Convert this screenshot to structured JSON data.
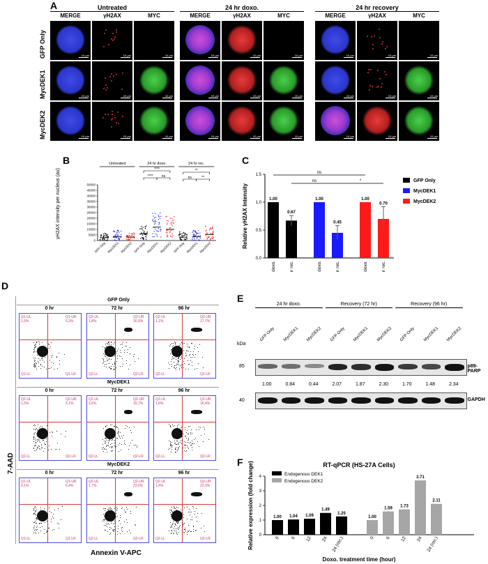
{
  "panel_letters": {
    "a": "A",
    "b": "B",
    "c": "C",
    "d": "D",
    "e": "E",
    "f": "F"
  },
  "panelA": {
    "groups": [
      "Untreated",
      "24 hr doxo.",
      "24 hr recovery"
    ],
    "channels": [
      "MERGE",
      "γH2AX",
      "MYC"
    ],
    "rows": [
      "GFP Only",
      "MycDEK1",
      "MycDEK2"
    ],
    "scale": "10 µm"
  },
  "panelB": {
    "ylabel": "γH2AX intensity per nucleus (au)",
    "groups": [
      "Untreated",
      "24 hr doxo.",
      "24 hr rec."
    ],
    "xticks": [
      "GFP Only",
      "MycDEK1",
      "MycDEK2",
      "GFP Only",
      "MycDEK1",
      "MycDEK2",
      "GFP Only",
      "MycDEK1",
      "MycDEK2"
    ],
    "yticks": [
      "0",
      "5000",
      "10000",
      "15000",
      "20000",
      "25000",
      "30000",
      "35000",
      "40000",
      "45000",
      "50000"
    ],
    "sig": [
      "****",
      "****",
      "ns",
      "**",
      "ns",
      "**"
    ]
  },
  "chart_data": [
    {
      "type": "bar",
      "panel": "C",
      "ylabel": "Relative γH2AX Intensity",
      "ylim": [
        0,
        1.5
      ],
      "yticks": [
        "0.0",
        "0.5",
        "1.0",
        "1.5"
      ],
      "categories": [
        "24 hr doxo.",
        "24 hr rec.",
        "24 hr doxo.",
        "24 hr rec.",
        "24 hr doxo.",
        "24 hr rec."
      ],
      "values": [
        1.0,
        0.67,
        1.0,
        0.45,
        1.0,
        0.7
      ],
      "labels": [
        "1.00",
        "0.67",
        "1.00",
        "0.45",
        "1.00",
        "0.70"
      ],
      "colors": [
        "#000000",
        "#000000",
        "#1a1aff",
        "#1a1aff",
        "#ff1a1a",
        "#ff1a1a"
      ],
      "errors": [
        0,
        0.09,
        0,
        0.13,
        0,
        0.22
      ],
      "legend": [
        {
          "name": "GFP Only",
          "color": "#000000"
        },
        {
          "name": "MycDEK1",
          "color": "#1a1aff"
        },
        {
          "name": "MycDEK2",
          "color": "#ff1a1a"
        }
      ],
      "sig": [
        "ns",
        "ns",
        "*"
      ]
    },
    {
      "type": "bar",
      "panel": "F",
      "title": "RT-qPCR (HS-27A Cells)",
      "xlabel": "Doxo. treatment time (hour)",
      "ylabel": "Relative expression (fold change)",
      "ylim": [
        0,
        4
      ],
      "yticks": [
        "0",
        "1",
        "2",
        "3",
        "4"
      ],
      "categories": [
        "0",
        "6",
        "12",
        "24",
        "24 (rec.)",
        "0",
        "6",
        "12",
        "24",
        "24 (rec.)"
      ],
      "values": [
        1.0,
        1.04,
        1.09,
        1.49,
        1.25,
        1.0,
        1.59,
        1.73,
        3.71,
        2.11
      ],
      "labels": [
        "1.00",
        "1.04",
        "1.09",
        "1.49",
        "1.25",
        "1.00",
        "1.59",
        "1.73",
        "3.71",
        "2.11"
      ],
      "colors": [
        "#000000",
        "#000000",
        "#000000",
        "#000000",
        "#000000",
        "#a6a6a6",
        "#a6a6a6",
        "#a6a6a6",
        "#a6a6a6",
        "#a6a6a6"
      ],
      "legend": [
        {
          "name": "Endogenous DEK1",
          "color": "#000000"
        },
        {
          "name": "Endogenous DEK2",
          "color": "#a6a6a6"
        }
      ]
    }
  ],
  "panelD": {
    "ylabel": "7-AAD",
    "xlabel": "Annexin V-APC",
    "conditions": [
      "GFP Only",
      "MycDEK1",
      "MycDEK2"
    ],
    "times": [
      "0 hr",
      "72 hr",
      "96 hr"
    ],
    "quadrants": [
      [
        [
          "Q1-UL",
          "Q1-UR",
          "Q1-LL",
          "Q1-LR"
        ],
        [
          "Q2-UL",
          "Q2-UR",
          "Q2-LL",
          "Q2-LR"
        ],
        [
          "Q2-UL",
          "Q2-UR",
          "Q2-LL",
          "Q2-LR"
        ]
      ],
      [
        [
          "Q2-UL",
          "Q2-UR",
          "Q2-LL",
          "Q2-LR"
        ],
        [
          "Q2-UL",
          "Q2-UR",
          "Q2-LL",
          "Q2-LR"
        ],
        [
          "Q2-UL",
          "Q2-UR",
          "Q2-LL",
          "Q2-LR"
        ]
      ],
      [
        [
          "Q1-UL",
          "Q1-UR",
          "Q1-LL",
          "Q1-LR"
        ],
        [
          "Q2-UL",
          "Q2-UR",
          "Q2-LL",
          "Q2-LR"
        ],
        [
          "Q2-UL",
          "Q2-UR",
          "Q2-LL",
          "Q2-LR"
        ]
      ]
    ],
    "upper_pct": [
      [
        [
          "1,5%",
          "5,3%"
        ],
        [
          "1,8%",
          "16,6%"
        ],
        [
          "1,1%",
          "17,7%"
        ]
      ],
      [
        [
          "1,5%",
          "5,1%"
        ],
        [
          "2,6%",
          "15,7%"
        ],
        [
          "1,6%",
          "18,4%"
        ]
      ],
      [
        [
          "0,1%",
          "6,4%"
        ],
        [
          "1,7%",
          "23,0%"
        ],
        [
          "1,4%",
          "22,0%"
        ]
      ]
    ]
  },
  "panelE": {
    "groups": [
      "24 hr doxo.",
      "Recovery (72 hr)",
      "Recovery (96 hr)"
    ],
    "lanes": [
      "GFP Only",
      "MycDEK1",
      "MycDEK2",
      "GFP Only",
      "MycDEK1",
      "MycDEK2",
      "GFP Only",
      "MycDEK1",
      "MycDEK2"
    ],
    "kda_label": "kDa",
    "markers": [
      "85",
      "40"
    ],
    "proteins": [
      "p89-PARP",
      "GAPDH"
    ],
    "quant": [
      "1.00",
      "0.84",
      "0.44",
      "2.07",
      "1.87",
      "2.30",
      "1.70",
      "1.48",
      "2.34"
    ],
    "parp_levels": [
      1.0,
      0.84,
      0.44,
      2.07,
      1.87,
      2.3,
      1.7,
      1.48,
      2.34
    ]
  }
}
